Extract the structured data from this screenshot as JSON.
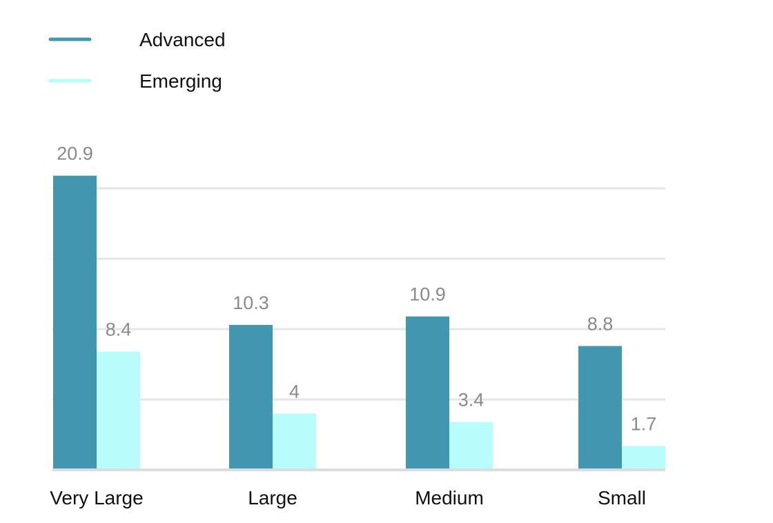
{
  "chart_data": {
    "type": "bar",
    "title": "",
    "xlabel": "",
    "ylabel": "",
    "categories": [
      "Very Large",
      "Large",
      "Medium",
      "Small"
    ],
    "series": [
      {
        "name": "Advanced",
        "values": [
          20.9,
          10.3,
          10.9,
          8.8
        ],
        "color": "#4396af"
      },
      {
        "name": "Emerging",
        "values": [
          8.4,
          4,
          3.4,
          1.7
        ],
        "color": "#b8fcfc"
      }
    ],
    "value_labels": {
      "Advanced": [
        "20.9",
        "10.3",
        "10.9",
        "8.8"
      ],
      "Emerging": [
        "8.4",
        "4",
        "3.4",
        "1.7"
      ]
    },
    "ylim": [
      0,
      20
    ],
    "gridlines": [
      5,
      10,
      15,
      20
    ],
    "grid": true,
    "legend_position": "top-left",
    "colors": {
      "grid": "#e6e6e6",
      "baseline": "#dddddd",
      "value_label": "#8a8a8a",
      "text": "#111111"
    }
  }
}
